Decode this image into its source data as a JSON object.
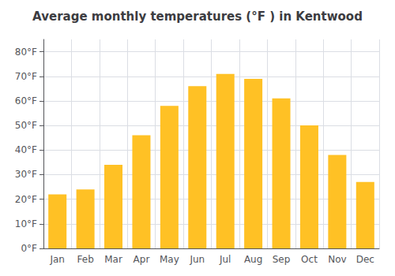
{
  "chart_data": {
    "type": "bar",
    "title": "Average monthly temperatures (°F ) in Kentwood",
    "categories": [
      "Jan",
      "Feb",
      "Mar",
      "Apr",
      "May",
      "Jun",
      "Jul",
      "Aug",
      "Sep",
      "Oct",
      "Nov",
      "Dec"
    ],
    "values": [
      22,
      24,
      34,
      46,
      58,
      66,
      71,
      69,
      61,
      50,
      38,
      27
    ],
    "color": "#FFC125",
    "ylim": [
      0,
      85
    ],
    "yticks": [
      {
        "value": 0,
        "label": "0°F"
      },
      {
        "value": 10,
        "label": "10°F"
      },
      {
        "value": 20,
        "label": "20°F"
      },
      {
        "value": 30,
        "label": "30°F"
      },
      {
        "value": 40,
        "label": "40°F"
      },
      {
        "value": 50,
        "label": "50°F"
      },
      {
        "value": 60,
        "label": "60°F"
      },
      {
        "value": 70,
        "label": "70°F"
      },
      {
        "value": 80,
        "label": "80°F"
      }
    ],
    "grid": true
  }
}
